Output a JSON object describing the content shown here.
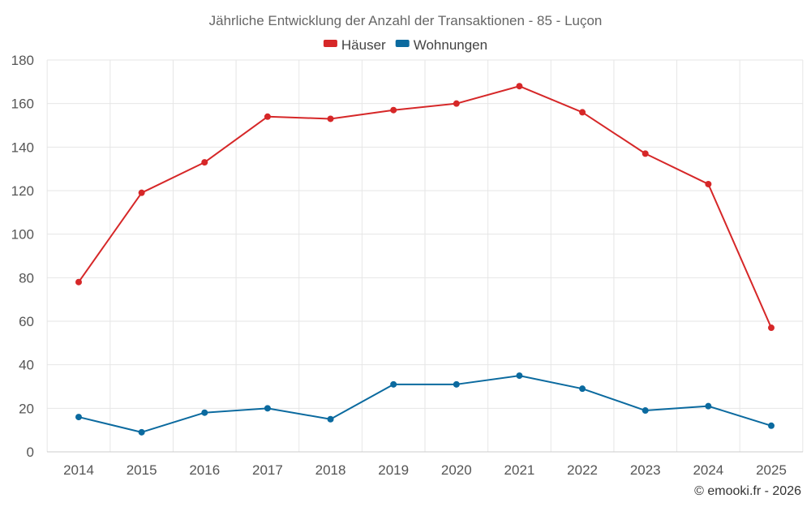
{
  "chart_data": {
    "type": "line",
    "title": "Jährliche Entwicklung der Anzahl der Transaktionen - 85 - Luçon",
    "categories": [
      "2014",
      "2015",
      "2016",
      "2017",
      "2018",
      "2019",
      "2020",
      "2021",
      "2022",
      "2023",
      "2024",
      "2025"
    ],
    "ylim": [
      0,
      180
    ],
    "yticks": [
      0,
      20,
      40,
      60,
      80,
      100,
      120,
      140,
      160,
      180
    ],
    "grid": true,
    "legend_position": "top-center",
    "series": [
      {
        "name": "Häuser",
        "color": "#d62728",
        "values": [
          78,
          119,
          133,
          154,
          153,
          157,
          160,
          168,
          156,
          137,
          123,
          57
        ]
      },
      {
        "name": "Wohnungen",
        "color": "#0b6a9f",
        "values": [
          16,
          9,
          18,
          20,
          15,
          31,
          31,
          35,
          29,
          19,
          21,
          12
        ]
      }
    ],
    "credit": "© emooki.fr - 2026"
  }
}
